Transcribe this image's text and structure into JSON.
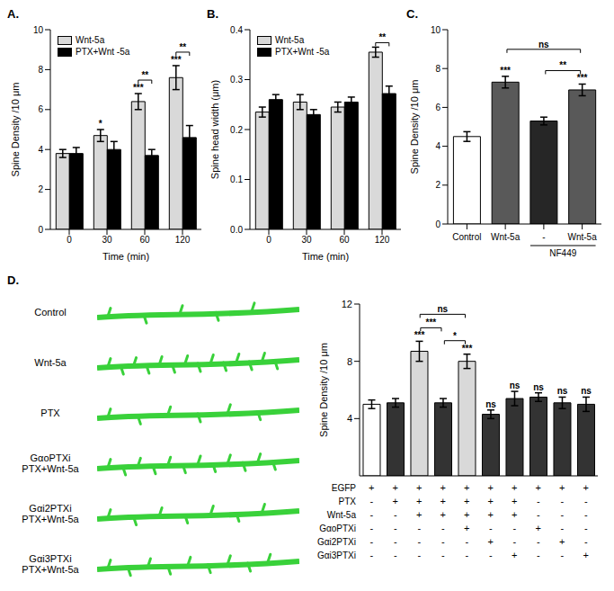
{
  "chart_data": [
    {
      "panel": "A.",
      "type": "bar",
      "categories": [
        "0",
        "30",
        "60",
        "120"
      ],
      "x_label": "Time (min)",
      "y_label": "Spine Density /10 μm",
      "ylim": [
        0,
        10
      ],
      "yticks": [
        0,
        2,
        4,
        6,
        8,
        10
      ],
      "legend": "upper left",
      "series": [
        {
          "name": "Wnt-5a",
          "color": "#d9d9d9",
          "values": [
            3.8,
            4.7,
            6.4,
            7.6
          ],
          "errors": [
            0.2,
            0.3,
            0.4,
            0.6
          ],
          "significance": [
            null,
            "*",
            "***",
            "***"
          ]
        },
        {
          "name": "PTX+Wnt -5a",
          "color": "#000000",
          "values": [
            3.8,
            4.0,
            3.7,
            4.6
          ],
          "errors": [
            0.3,
            0.4,
            0.3,
            0.6
          ],
          "significance": [
            null,
            null,
            null,
            null
          ]
        }
      ],
      "brackets": [
        {
          "category": 2,
          "label": "**"
        },
        {
          "category": 3,
          "label": "**"
        }
      ]
    },
    {
      "panel": "B.",
      "type": "bar",
      "categories": [
        "0",
        "30",
        "60",
        "120"
      ],
      "x_label": "Time (min)",
      "y_label": "Spine head width (μm)",
      "ylim": [
        0,
        0.4
      ],
      "yticks": [
        {
          "value": 0,
          "label": "0.0"
        },
        0.1,
        0.2,
        0.3,
        0.4
      ],
      "legend": "upper left",
      "series": [
        {
          "name": "Wnt-5a",
          "color": "#d9d9d9",
          "values": [
            0.235,
            0.255,
            0.245,
            0.355
          ],
          "errors": [
            0.01,
            0.015,
            0.01,
            0.01
          ]
        },
        {
          "name": "PTX+Wnt -5a",
          "color": "#000000",
          "values": [
            0.26,
            0.23,
            0.255,
            0.272
          ],
          "errors": [
            0.01,
            0.01,
            0.01,
            0.015
          ]
        }
      ],
      "brackets": [
        {
          "category": 3,
          "label": "**"
        }
      ]
    },
    {
      "panel": "C.",
      "type": "bar",
      "categories": [
        "Control",
        "Wnt-5a",
        "-",
        "Wnt-5a"
      ],
      "y_label": "Spine Density /10 μm",
      "ylim": [
        0,
        10
      ],
      "yticks": [
        0,
        2,
        4,
        6,
        8,
        10
      ],
      "values": [
        4.5,
        7.3,
        5.3,
        6.9
      ],
      "errors": [
        0.25,
        0.3,
        0.2,
        0.3
      ],
      "colors": [
        "#ffffff",
        "#595959",
        "#262626",
        "#595959"
      ],
      "significance": [
        null,
        "***",
        null,
        "***"
      ],
      "brackets": [
        {
          "from": 1,
          "to": 3,
          "label": "ns"
        },
        {
          "from": 2,
          "to": 3,
          "label": "**"
        }
      ],
      "group_label": {
        "text": "NF449",
        "from": 2,
        "to": 3
      }
    },
    {
      "panel": "D.",
      "type": "bar",
      "categories": [
        null,
        null,
        null,
        null,
        null,
        null,
        null,
        null,
        null,
        null
      ],
      "tick_labels": "y",
      "y_label": "Spine Density /10 μm",
      "ylim": [
        0,
        12
      ],
      "yticks": [
        0,
        4,
        8,
        12
      ],
      "values": [
        5.0,
        5.1,
        8.7,
        5.1,
        8.0,
        4.3,
        5.4,
        5.5,
        5.1,
        5.0
      ],
      "errors": [
        0.3,
        0.3,
        0.7,
        0.3,
        0.5,
        0.3,
        0.5,
        0.3,
        0.4,
        0.5
      ],
      "colors": [
        "#ffffff",
        "#333333",
        "#d9d9d9",
        "#333333",
        "#d9d9d9",
        "#333333",
        "#333333",
        "#333333",
        "#333333",
        "#333333"
      ],
      "significance": [
        null,
        null,
        "***",
        null,
        "***",
        "ns",
        "ns",
        "ns",
        "ns",
        "ns"
      ],
      "brackets": [
        {
          "from": 2,
          "to": 3,
          "label": "***"
        },
        {
          "from": 3,
          "to": 4,
          "label": "*"
        },
        {
          "from": 2,
          "to": 4,
          "label": "ns"
        }
      ],
      "conditions": [
        {
          "label": "EGFP",
          "marks": [
            "+",
            "+",
            "+",
            "+",
            "+",
            "+",
            "+",
            "+",
            "+",
            "+"
          ]
        },
        {
          "label": "PTX",
          "marks": [
            "-",
            "+",
            "+",
            "+",
            "+",
            "+",
            "+",
            "-",
            "-",
            "-"
          ]
        },
        {
          "label": "Wnt-5a",
          "marks": [
            "-",
            "-",
            "+",
            "+",
            "+",
            "+",
            "+",
            "-",
            "-",
            "-"
          ]
        },
        {
          "label": "GαoPTXi",
          "marks": [
            "-",
            "-",
            "-",
            "-",
            "+",
            "-",
            "-",
            "+",
            "-",
            "-"
          ]
        },
        {
          "label": "Gαi2PTXi",
          "marks": [
            "-",
            "-",
            "-",
            "-",
            "-",
            "+",
            "-",
            "-",
            "+",
            "-"
          ]
        },
        {
          "label": "Gαi3PTXi",
          "marks": [
            "-",
            "-",
            "-",
            "-",
            "-",
            "-",
            "+",
            "-",
            "-",
            "+"
          ]
        }
      ]
    }
  ],
  "images": {
    "labels": [
      [
        "Control"
      ],
      [
        "Wnt-5a"
      ],
      [
        "PTX"
      ],
      [
        "GαoPTXi",
        "PTX+Wnt-5a"
      ],
      [
        "Gαi2PTXi",
        "PTX+Wnt-5a"
      ],
      [
        "Gαi3PTXi",
        "PTX+Wnt-5a"
      ]
    ]
  }
}
